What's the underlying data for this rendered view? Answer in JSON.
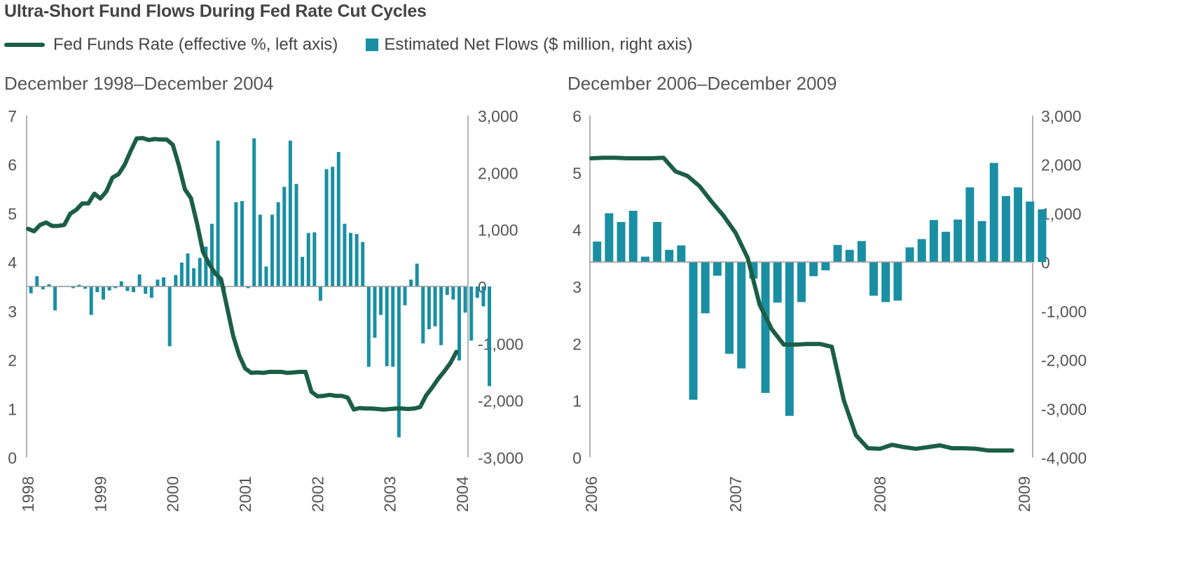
{
  "title": "Ultra-Short Fund Flows During Fed Rate Cut Cycles",
  "legend": {
    "line_label": "Fed Funds Rate (effective %, left axis)",
    "bar_label": "Estimated Net Flows ($ million, right axis)"
  },
  "colors": {
    "line": "#1b5e46",
    "bars": "#1a8fa3",
    "axis": "#999999"
  },
  "chart_data": [
    {
      "type": "bar+line",
      "title": "December 1998–December 2004",
      "x_tick_labels": [
        "1998",
        "1999",
        "2000",
        "2001",
        "2002",
        "2003",
        "2004"
      ],
      "x_range": [
        1998,
        2004
      ],
      "left_axis": {
        "range": [
          0,
          7
        ],
        "ticks": [
          0,
          1,
          2,
          3,
          4,
          5,
          6,
          7
        ],
        "tick_labels": [
          "0",
          "1",
          "2",
          "3",
          "4",
          "5",
          "6",
          "7"
        ]
      },
      "right_axis": {
        "range": [
          -3000,
          3000
        ],
        "ticks": [
          -3000,
          -2000,
          -1000,
          0,
          1000,
          2000,
          3000
        ],
        "tick_labels": [
          "-3,000",
          "-2,000",
          "-1,000",
          "0",
          "1,000",
          "2,000",
          "3,000"
        ]
      },
      "series": [
        {
          "kind": "line",
          "axis": "left",
          "x_start": 1998.0,
          "x_step": 0.08333,
          "values": [
            4.68,
            4.63,
            4.76,
            4.81,
            4.74,
            4.74,
            4.76,
            4.99,
            5.07,
            5.2,
            5.2,
            5.4,
            5.3,
            5.45,
            5.73,
            5.8,
            5.99,
            6.27,
            6.53,
            6.54,
            6.5,
            6.52,
            6.51,
            6.51,
            6.4,
            5.98,
            5.49,
            5.31,
            4.8,
            4.21,
            3.97,
            3.77,
            3.65,
            3.07,
            2.49,
            2.09,
            1.82,
            1.73,
            1.74,
            1.73,
            1.75,
            1.75,
            1.75,
            1.73,
            1.74,
            1.75,
            1.75,
            1.34,
            1.25,
            1.26,
            1.28,
            1.26,
            1.26,
            1.22,
            0.98,
            1.01,
            1.0,
            1.0,
            0.99,
            0.98,
            0.99,
            1.0,
            1.0,
            0.99,
            1.0,
            1.03,
            1.27,
            1.43,
            1.61,
            1.76,
            1.93,
            2.16
          ]
        },
        {
          "kind": "bar",
          "axis": "right",
          "x_start": 1998.04,
          "x_step": 0.08333,
          "values": [
            -120,
            180,
            -50,
            40,
            -420,
            -10,
            10,
            -30,
            30,
            -40,
            -500,
            -100,
            -230,
            -70,
            -30,
            90,
            -80,
            -100,
            210,
            -130,
            -200,
            120,
            160,
            -1050,
            200,
            420,
            580,
            320,
            500,
            700,
            1100,
            2560,
            -60,
            0,
            1480,
            1500,
            -30,
            2600,
            1260,
            350,
            1260,
            1480,
            1750,
            2560,
            1800,
            520,
            940,
            950,
            -250,
            2060,
            2100,
            2360,
            1100,
            940,
            920,
            780,
            -1410,
            -900,
            -500,
            -1400,
            -1410,
            -2650,
            -330,
            120,
            400,
            -1000,
            -750,
            -700,
            -1030,
            -150,
            -230,
            -1300,
            -460,
            -950,
            -200,
            -350,
            -1750
          ]
        }
      ]
    },
    {
      "type": "bar+line",
      "title": "December 2006–December 2009",
      "x_tick_labels": [
        "2006",
        "2007",
        "2008",
        "2009"
      ],
      "x_range": [
        2006,
        2009
      ],
      "left_axis": {
        "range": [
          0,
          6
        ],
        "ticks": [
          0,
          1,
          2,
          3,
          4,
          5,
          6
        ],
        "tick_labels": [
          "0",
          "1",
          "2",
          "3",
          "4",
          "5",
          "6"
        ]
      },
      "right_axis": {
        "range": [
          -4000,
          3000
        ],
        "ticks": [
          -4000,
          -3000,
          -2000,
          -1000,
          0,
          1000,
          2000,
          3000
        ],
        "tick_labels": [
          "-4,000",
          "-3,000",
          "-2,000",
          "-1,000",
          "0",
          "1,000",
          "2,000",
          "3,000"
        ]
      },
      "series": [
        {
          "kind": "line",
          "axis": "left",
          "x_start": 2006.0,
          "x_step": 0.08333,
          "values": [
            5.25,
            5.26,
            5.26,
            5.25,
            5.25,
            5.25,
            5.26,
            5.02,
            4.94,
            4.76,
            4.49,
            4.24,
            3.94,
            3.5,
            2.68,
            2.25,
            1.98,
            1.98,
            1.99,
            1.99,
            1.94,
            1.0,
            0.39,
            0.16,
            0.15,
            0.22,
            0.18,
            0.15,
            0.18,
            0.21,
            0.16,
            0.16,
            0.15,
            0.12,
            0.12,
            0.12
          ]
        },
        {
          "kind": "bar",
          "axis": "right",
          "x_start": 2006.04,
          "x_step": 0.08333,
          "values": [
            420,
            1000,
            820,
            1050,
            110,
            820,
            250,
            340,
            -2820,
            -1050,
            -280,
            -1880,
            -2180,
            -340,
            -2680,
            -830,
            -3150,
            -820,
            -290,
            -170,
            350,
            250,
            430,
            -690,
            -820,
            -790,
            300,
            470,
            860,
            620,
            870,
            1530,
            840,
            2030,
            1350,
            1530,
            1240,
            1080
          ]
        }
      ]
    }
  ]
}
